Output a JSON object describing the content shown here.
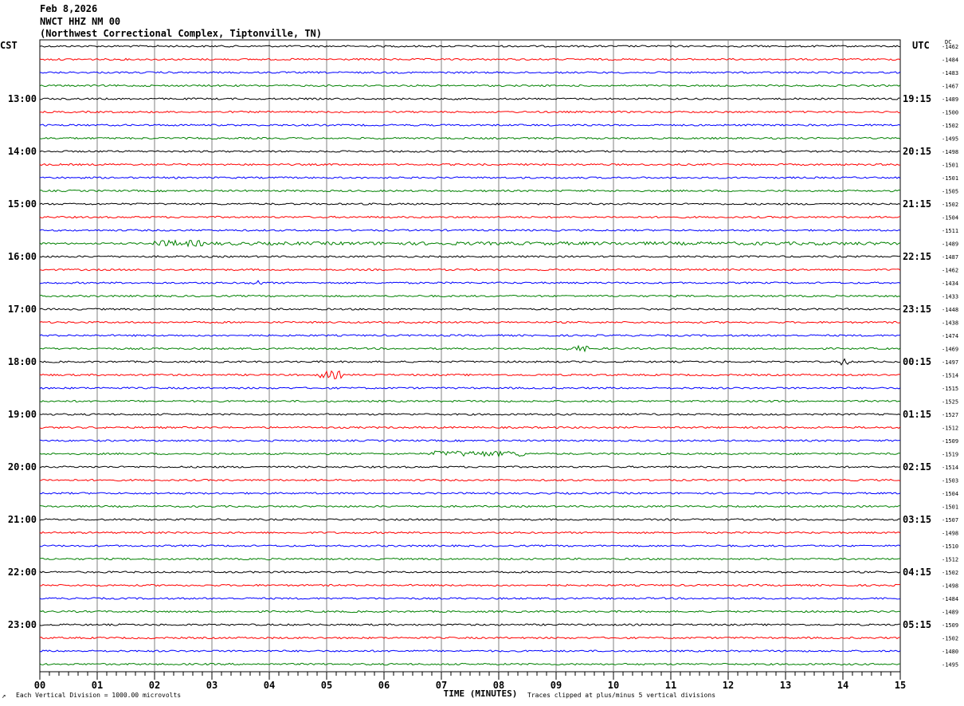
{
  "header": {
    "date": "Feb 8,2026",
    "station": "NWCT HHZ NM 00",
    "location": "(Northwest Correctional Complex, Tiptonville, TN)"
  },
  "left_tz": "CST",
  "right_tz": "UTC",
  "dc_label": "DC",
  "footer": {
    "scale_note": "Each Vertical Division = 1000.00 microvolts",
    "clip_note": "Traces clipped at plus/minus 5 vertical divisions",
    "corner_mark": "↗"
  },
  "chart_data": {
    "type": "line",
    "xlabel": "TIME (MINUTES)",
    "xlim": [
      0,
      15
    ],
    "x_ticks": [
      "00",
      "01",
      "02",
      "03",
      "04",
      "05",
      "06",
      "07",
      "08",
      "09",
      "10",
      "11",
      "12",
      "13",
      "14",
      "15"
    ],
    "trace_colors": [
      "#000000",
      "#ff0000",
      "#0000ff",
      "#008000"
    ],
    "left_hour_labels": [
      "13:00",
      "14:00",
      "15:00",
      "16:00",
      "17:00",
      "18:00",
      "19:00",
      "20:00",
      "21:00",
      "22:00",
      "23:00"
    ],
    "right_hour_labels": [
      "19:15",
      "20:15",
      "21:15",
      "22:15",
      "23:15",
      "00:15",
      "01:15",
      "02:15",
      "03:15",
      "04:15",
      "05:15"
    ],
    "dc_offsets": [
      "-1462",
      "-1484",
      "-1483",
      "-1467",
      "-1489",
      "-1500",
      "-1502",
      "-1495",
      "-1498",
      "-1501",
      "-1501",
      "-1505",
      "-1502",
      "-1504",
      "-1511",
      "-1489",
      "-1487",
      "-1462",
      "-1434",
      "-1433",
      "-1448",
      "-1438",
      "-1474",
      "-1469",
      "-1497",
      "-1514",
      "-1515",
      "-1525",
      "-1527",
      "-1512",
      "-1509",
      "-1519",
      "-1514",
      "-1503",
      "-1504",
      "-1501",
      "-1507",
      "-1498",
      "-1510",
      "-1512",
      "-1502",
      "-1498",
      "-1484",
      "-1489",
      "-1509",
      "-1502",
      "-1480",
      "-1495"
    ]
  }
}
